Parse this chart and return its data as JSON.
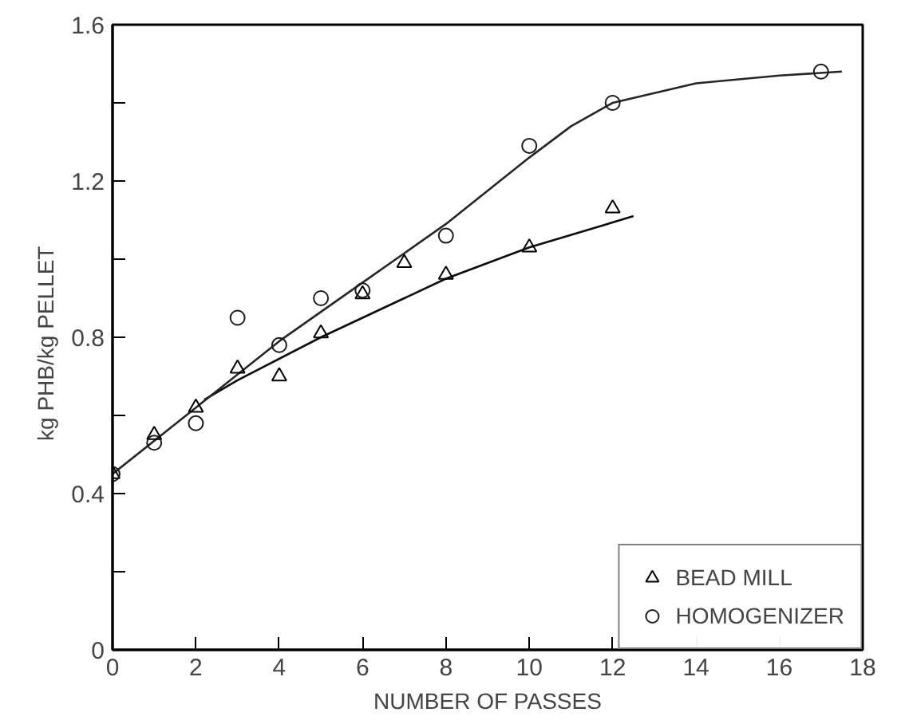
{
  "chart_data": {
    "type": "scatter",
    "xlabel": "NUMBER OF PASSES",
    "ylabel": "kg  PHB/kg  PELLET",
    "xlim": [
      0,
      18
    ],
    "ylim": [
      0,
      1.6
    ],
    "xticks": [
      0,
      2,
      4,
      6,
      8,
      10,
      12,
      14,
      16,
      18
    ],
    "yticks": [
      0,
      {
        "value": 0.2,
        "label": null
      },
      0.4,
      {
        "value": 0.6,
        "label": null
      },
      0.8,
      {
        "value": 1.0,
        "label": null
      },
      1.2,
      {
        "value": 1.4,
        "label": null
      },
      1.6
    ],
    "grid": false,
    "legend": "bottom right",
    "series": [
      {
        "name": "BEAD MILL",
        "marker": "triangle",
        "color": "#000000",
        "x": [
          0,
          1,
          2,
          3,
          4,
          5,
          6,
          7,
          8,
          10,
          12
        ],
        "values": [
          0.45,
          0.55,
          0.62,
          0.72,
          0.7,
          0.81,
          0.91,
          0.99,
          0.96,
          1.03,
          1.13
        ]
      },
      {
        "name": "HOMOGENIZER",
        "marker": "circle",
        "color": "#1a1a1a",
        "x": [
          0,
          1,
          2,
          3,
          4,
          5,
          6,
          8,
          10,
          12,
          17
        ],
        "values": [
          0.45,
          0.53,
          0.58,
          0.85,
          0.78,
          0.9,
          0.92,
          1.06,
          1.29,
          1.4,
          1.48
        ]
      },
      {
        "type": "line",
        "color": "#0d0d0d",
        "x": [
          2.2,
          3,
          5,
          7,
          8,
          10,
          12.5
        ],
        "values": [
          0.64,
          0.69,
          0.8,
          0.9,
          0.95,
          1.03,
          1.11
        ]
      },
      {
        "type": "line",
        "color": "#262626",
        "x": [
          0,
          2,
          4,
          6,
          8,
          10,
          11,
          12,
          14,
          16,
          17.5
        ],
        "values": [
          0.45,
          0.62,
          0.79,
          0.94,
          1.09,
          1.26,
          1.34,
          1.4,
          1.45,
          1.47,
          1.48
        ]
      }
    ]
  }
}
